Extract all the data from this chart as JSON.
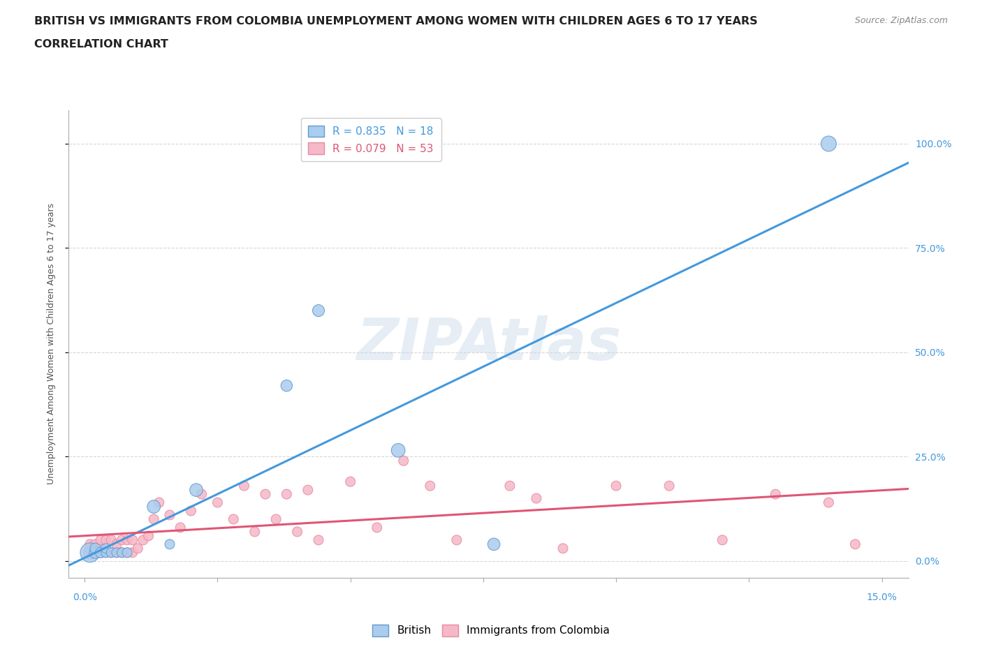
{
  "title_line1": "BRITISH VS IMMIGRANTS FROM COLOMBIA UNEMPLOYMENT AMONG WOMEN WITH CHILDREN AGES 6 TO 17 YEARS",
  "title_line2": "CORRELATION CHART",
  "source_text": "Source: ZipAtlas.com",
  "watermark": "ZIPAtlas",
  "ylabel_right_labels": [
    "0.0%",
    "25.0%",
    "50.0%",
    "75.0%",
    "100.0%"
  ],
  "ylabel_left": "Unemployment Among Women with Children Ages 6 to 17 years",
  "british_R": 0.835,
  "british_N": 18,
  "colombia_R": 0.079,
  "colombia_N": 53,
  "british_color": "#aaccee",
  "british_edge_color": "#6699cc",
  "british_line_color": "#4499dd",
  "colombia_color": "#f5b8c8",
  "colombia_edge_color": "#e88aa0",
  "colombia_line_color": "#e05575",
  "british_x": [
    0.001,
    0.002,
    0.002,
    0.003,
    0.004,
    0.004,
    0.005,
    0.006,
    0.007,
    0.008,
    0.013,
    0.016,
    0.021,
    0.038,
    0.044,
    0.059,
    0.077,
    0.14
  ],
  "british_y": [
    0.02,
    0.02,
    0.03,
    0.02,
    0.02,
    0.03,
    0.02,
    0.02,
    0.02,
    0.02,
    0.13,
    0.04,
    0.17,
    0.42,
    0.6,
    0.265,
    0.04,
    1.0
  ],
  "british_size": [
    400,
    150,
    120,
    120,
    100,
    100,
    100,
    100,
    100,
    100,
    180,
    100,
    180,
    140,
    150,
    200,
    160,
    250
  ],
  "colombia_x": [
    0.001,
    0.001,
    0.001,
    0.002,
    0.002,
    0.003,
    0.003,
    0.003,
    0.004,
    0.004,
    0.005,
    0.005,
    0.006,
    0.006,
    0.007,
    0.007,
    0.008,
    0.008,
    0.009,
    0.009,
    0.01,
    0.011,
    0.012,
    0.013,
    0.014,
    0.016,
    0.018,
    0.02,
    0.022,
    0.025,
    0.028,
    0.03,
    0.032,
    0.034,
    0.036,
    0.038,
    0.04,
    0.042,
    0.044,
    0.05,
    0.055,
    0.06,
    0.065,
    0.07,
    0.08,
    0.085,
    0.09,
    0.1,
    0.11,
    0.12,
    0.13,
    0.14,
    0.145
  ],
  "colombia_y": [
    0.02,
    0.03,
    0.04,
    0.02,
    0.04,
    0.02,
    0.03,
    0.05,
    0.02,
    0.05,
    0.02,
    0.05,
    0.02,
    0.04,
    0.02,
    0.05,
    0.02,
    0.05,
    0.02,
    0.05,
    0.03,
    0.05,
    0.06,
    0.1,
    0.14,
    0.11,
    0.08,
    0.12,
    0.16,
    0.14,
    0.1,
    0.18,
    0.07,
    0.16,
    0.1,
    0.16,
    0.07,
    0.17,
    0.05,
    0.19,
    0.08,
    0.24,
    0.18,
    0.05,
    0.18,
    0.15,
    0.03,
    0.18,
    0.18,
    0.05,
    0.16,
    0.14,
    0.04
  ],
  "colombia_size": [
    180,
    120,
    100,
    100,
    100,
    100,
    100,
    100,
    100,
    100,
    100,
    100,
    100,
    100,
    100,
    100,
    100,
    100,
    100,
    100,
    100,
    100,
    100,
    100,
    100,
    100,
    100,
    100,
    100,
    100,
    100,
    100,
    100,
    100,
    100,
    100,
    100,
    100,
    100,
    100,
    100,
    100,
    100,
    100,
    100,
    100,
    100,
    100,
    100,
    100,
    100,
    100,
    100
  ],
  "xlim": [
    -0.003,
    0.155
  ],
  "ylim": [
    -0.04,
    1.08
  ],
  "yticks": [
    0.0,
    0.25,
    0.5,
    0.75,
    1.0
  ],
  "xticks": [
    0.0,
    0.025,
    0.05,
    0.075,
    0.1,
    0.125,
    0.15
  ],
  "grid_color": "#cccccc",
  "background_color": "#ffffff",
  "title_fontsize": 11.5,
  "subtitle_fontsize": 11.5,
  "axis_fontsize": 10,
  "legend_fontsize": 11,
  "watermark_fontsize": 60,
  "watermark_color": "#c8d8e8",
  "watermark_alpha": 0.45
}
